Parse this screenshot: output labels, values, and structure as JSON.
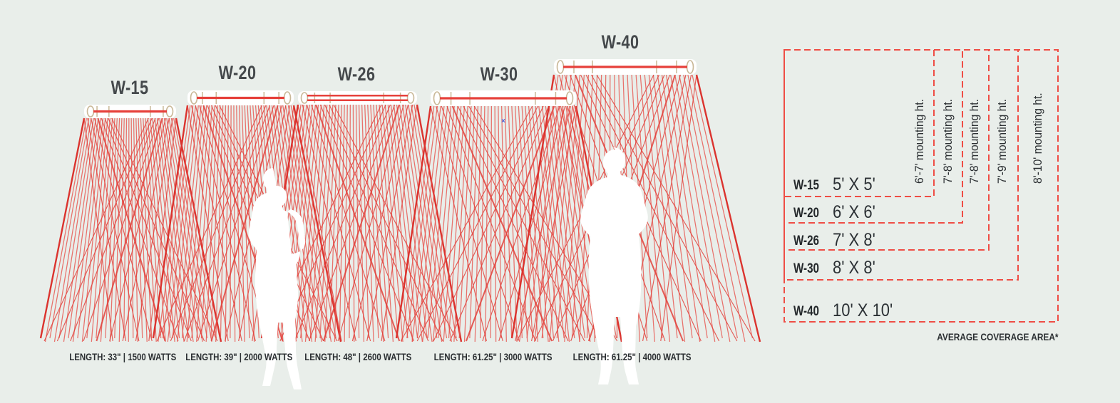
{
  "colors": {
    "background": "#e9eeea",
    "ray_thin": "#e8524c",
    "ray_cross": "#e2423c",
    "ray_edge": "#db332e",
    "element_red": "#e6403b",
    "bar_trim": "#c9b897",
    "bar_fill": "#ffffff",
    "dashed_red": "#ef4d45",
    "heading_gray": "#44484b",
    "text_dark": "#2b2f32",
    "silhouette_white": "#ffffff",
    "marker_blue": "#4a62d8"
  },
  "units": [
    {
      "model": "W-15",
      "spec": "LENGTH: 33\" | 1500 WATTS",
      "coverage": "5' X 5'",
      "mounting_height": "6'-7' mounting ht.",
      "element_lines": 1
    },
    {
      "model": "W-20",
      "spec": "LENGTH: 39\" | 2000 WATTS",
      "coverage": "6' X 6'",
      "mounting_height": "7'-8' mounting ht.",
      "element_lines": 1
    },
    {
      "model": "W-26",
      "spec": "LENGTH: 48\" | 2600 WATTS",
      "coverage": "7' X 8'",
      "mounting_height": "7'-8' mounting ht.",
      "element_lines": 2
    },
    {
      "model": "W-30",
      "spec": "LENGTH: 61.25\" | 3000 WATTS",
      "coverage": "8' X 8'",
      "mounting_height": "7'-9' mounting ht.",
      "element_lines": 1
    },
    {
      "model": "W-40",
      "spec": "LENGTH: 61.25\" | 4000 WATTS",
      "coverage": "10' X 10'",
      "mounting_height": "8'-10' mounting ht.",
      "element_lines": 1
    }
  ],
  "coverage_table_footnote": "AVERAGE COVERAGE AREA*",
  "stray_marker": "×"
}
